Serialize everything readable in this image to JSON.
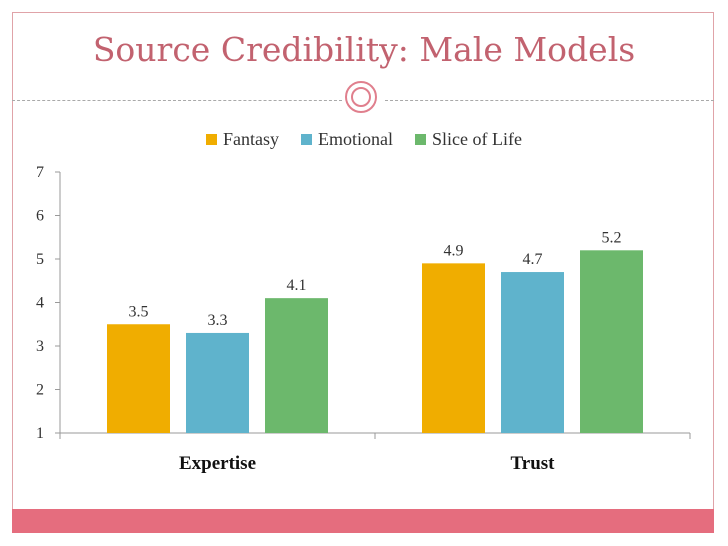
{
  "slide": {
    "title": "Source Credibility: Male Models"
  },
  "colors": {
    "title": "#c2626f",
    "footer": "#e56d7e",
    "ornament": "#e07f8d"
  },
  "chart_data": {
    "type": "bar",
    "categories": [
      "Expertise",
      "Trust"
    ],
    "series": [
      {
        "name": "Fantasy",
        "color": "#f0ad00",
        "values": [
          3.5,
          4.9
        ]
      },
      {
        "name": "Emotional",
        "color": "#5fb3cc",
        "values": [
          3.3,
          4.7
        ]
      },
      {
        "name": "Slice of Life",
        "color": "#6cb86c",
        "values": [
          4.1,
          5.2
        ]
      }
    ],
    "title": "",
    "xlabel": "",
    "ylabel": "",
    "ylim": [
      1,
      7
    ],
    "yticks": [
      1,
      2,
      3,
      4,
      5,
      6,
      7
    ],
    "grid": false,
    "legend": "top-center",
    "data_labels": true
  }
}
